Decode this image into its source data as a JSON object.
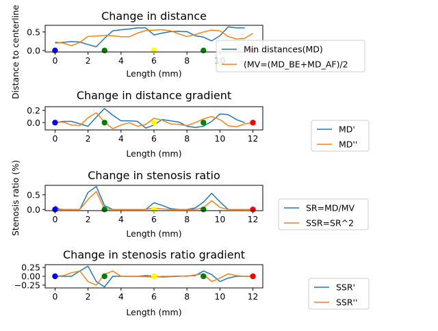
{
  "colors": {
    "blue": "#1f77b4",
    "orange": "#ff7f0e",
    "frame": "#000000",
    "legend_border": "#cccccc"
  },
  "chart_data": [
    {
      "type": "line",
      "title": "Change in distance",
      "xlabel": "Length (mm)",
      "ylabel": "Distance to centerline",
      "xlim": [
        -0.6,
        12.6
      ],
      "ylim": [
        -0.04,
        0.68
      ],
      "xticks": [
        "0",
        "2",
        "4",
        "6",
        "8",
        "10"
      ],
      "yticks": [
        "0.0",
        "0.5"
      ],
      "legend_position": "lower-right",
      "series": [
        {
          "name": "Min distances(MD)",
          "color": "#1f77b4",
          "x": [
            0,
            0.5,
            1,
            1.5,
            2,
            2.5,
            3,
            3.5,
            4,
            4.5,
            5,
            5.5,
            6,
            6.5,
            7,
            7.5,
            8,
            8.5,
            9,
            9.5,
            10,
            10.5,
            11,
            11.5
          ],
          "values": [
            0.2,
            0.22,
            0.24,
            0.23,
            0.16,
            0.1,
            0.33,
            0.53,
            0.56,
            0.58,
            0.61,
            0.61,
            0.42,
            0.47,
            0.51,
            0.52,
            0.51,
            0.4,
            0.36,
            0.26,
            0.4,
            0.64,
            0.61,
            0.61
          ]
        },
        {
          "name": "(MV=(MD_BE+MD_AF)/2",
          "color": "#ff7f0e",
          "x": [
            0,
            0.5,
            1,
            1.5,
            2,
            2.5,
            3,
            3.5,
            4,
            4.5,
            5,
            5.5,
            6,
            6.5,
            7,
            7.5,
            8,
            8.5,
            9,
            9.5,
            10,
            10.5,
            11,
            11.5,
            12
          ],
          "values": [
            0.23,
            0.2,
            0.13,
            0.22,
            0.38,
            0.39,
            0.41,
            0.4,
            0.37,
            0.37,
            0.47,
            0.54,
            0.55,
            0.56,
            0.53,
            0.45,
            0.38,
            0.43,
            0.5,
            0.55,
            0.53,
            0.38,
            0.31,
            0.33,
            0.46
          ]
        }
      ],
      "markers": [
        {
          "x": 0,
          "y": 0,
          "color": "#0000ff"
        },
        {
          "x": 3,
          "y": 0,
          "color": "#008000"
        },
        {
          "x": 6,
          "y": 0,
          "color": "#ffff00"
        },
        {
          "x": 9,
          "y": 0,
          "color": "#008000"
        },
        {
          "x": 12,
          "y": 0,
          "color": "#ff0000"
        }
      ]
    },
    {
      "type": "line",
      "title": "Change in distance gradient",
      "xlabel": "Length (mm)",
      "ylabel": "",
      "xlim": [
        -0.6,
        12.6
      ],
      "ylim": [
        -0.12,
        0.26
      ],
      "xticks": [
        "0",
        "2",
        "4",
        "6",
        "8",
        "10",
        "12"
      ],
      "yticks": [
        "0.0",
        "0.2"
      ],
      "legend_position": "right",
      "series": [
        {
          "name": "MD'",
          "color": "#1f77b4",
          "x": [
            0,
            0.5,
            1,
            1.5,
            2,
            2.5,
            3,
            3.5,
            4,
            4.5,
            5,
            5.5,
            6,
            6.5,
            7,
            7.5,
            8,
            8.5,
            9,
            9.5,
            10,
            10.5,
            11,
            11.5
          ],
          "values": [
            0.0,
            0.02,
            0.02,
            -0.02,
            -0.06,
            0.09,
            0.23,
            0.12,
            0.03,
            0.03,
            0.02,
            -0.09,
            -0.04,
            0.05,
            0.03,
            0.01,
            -0.06,
            -0.08,
            -0.06,
            0.02,
            0.14,
            0.13,
            0.05,
            0.0
          ]
        },
        {
          "name": "MD''",
          "color": "#ff7f0e",
          "x": [
            0,
            0.5,
            1,
            1.5,
            2,
            2.5,
            3,
            3.5,
            4,
            4.5,
            5,
            5.5,
            6,
            6.5,
            7,
            7.5,
            8,
            8.5,
            9,
            9.5,
            10,
            10.5,
            11,
            11.5,
            12
          ],
          "values": [
            0.0,
            0.01,
            -0.04,
            -0.05,
            0.08,
            0.16,
            0.01,
            -0.1,
            -0.04,
            0.0,
            -0.06,
            -0.03,
            0.07,
            0.04,
            -0.02,
            -0.03,
            -0.05,
            0.0,
            0.06,
            0.1,
            0.05,
            -0.05,
            -0.07,
            -0.02,
            0.0
          ]
        }
      ],
      "markers": [
        {
          "x": 0,
          "y": 0,
          "color": "#0000ff"
        },
        {
          "x": 3,
          "y": 0,
          "color": "#008000"
        },
        {
          "x": 6,
          "y": 0,
          "color": "#ffff00"
        },
        {
          "x": 9,
          "y": 0,
          "color": "#008000"
        },
        {
          "x": 12,
          "y": 0,
          "color": "#ff0000"
        }
      ]
    },
    {
      "type": "line",
      "title": "Change in stenosis ratio",
      "xlabel": "Length (mm)",
      "ylabel": "Stenosis ratio (%)",
      "xlim": [
        -0.6,
        12.6
      ],
      "ylim": [
        -0.04,
        0.82
      ],
      "xticks": [
        "0",
        "2",
        "4",
        "6",
        "8",
        "10",
        "12"
      ],
      "yticks": [
        "0.0",
        "0.5"
      ],
      "legend_position": "right",
      "series": [
        {
          "name": "SR=MD/MV",
          "color": "#1f77b4",
          "x": [
            0,
            0.25,
            0.5,
            1,
            1.5,
            2,
            2.5,
            3,
            3.5,
            4,
            4.5,
            5,
            5.5,
            6,
            6.5,
            7,
            7.5,
            8,
            8.5,
            9,
            9.5,
            10,
            10.5,
            11,
            11.5,
            12
          ],
          "values": [
            0.12,
            0.01,
            0.0,
            0.0,
            0.0,
            0.58,
            0.78,
            0.13,
            0.0,
            0.0,
            0.0,
            0.0,
            0.0,
            0.23,
            0.14,
            0.03,
            0.0,
            0.0,
            0.05,
            0.25,
            0.55,
            0.26,
            0.0,
            0.0,
            0.0,
            0.0
          ]
        },
        {
          "name": "SSR=SR^2",
          "color": "#ff7f0e",
          "x": [
            0,
            0.5,
            1,
            1.5,
            2,
            2.5,
            3,
            3.5,
            4,
            4.5,
            5,
            5.5,
            6,
            6.5,
            7,
            7.5,
            8,
            8.5,
            9,
            9.5,
            10,
            10.5,
            11,
            11.5,
            12
          ],
          "values": [
            0.0,
            0.0,
            0.0,
            0.0,
            0.34,
            0.61,
            0.02,
            0.0,
            0.0,
            0.0,
            0.0,
            0.0,
            0.05,
            0.02,
            0.0,
            0.0,
            0.0,
            0.0,
            0.06,
            0.3,
            0.07,
            0.0,
            0.0,
            0.0,
            0.0
          ]
        }
      ],
      "markers": [
        {
          "x": 0,
          "y": 0,
          "color": "#0000ff"
        },
        {
          "x": 3,
          "y": 0,
          "color": "#008000"
        },
        {
          "x": 6,
          "y": 0,
          "color": "#ffff00"
        },
        {
          "x": 9,
          "y": 0,
          "color": "#008000"
        },
        {
          "x": 12,
          "y": 0,
          "color": "#ff0000"
        }
      ]
    },
    {
      "type": "line",
      "title": "Change in stenosis ratio gradient",
      "xlabel": "Length (mm)",
      "ylabel": "",
      "xlim": [
        -0.6,
        12.6
      ],
      "ylim": [
        -0.33,
        0.33
      ],
      "xticks": [
        "0",
        "2",
        "4",
        "6",
        "8",
        "10",
        "12"
      ],
      "yticks": [
        "0.25",
        "0.00",
        "−0.25"
      ],
      "ytick_values": [
        0.25,
        0,
        -0.25
      ],
      "legend_position": "right",
      "series": [
        {
          "name": "SSR'",
          "color": "#1f77b4",
          "x": [
            0,
            0.5,
            1,
            1.5,
            2,
            2.5,
            3,
            3.5,
            4,
            4.5,
            5,
            5.5,
            6,
            6.5,
            7,
            7.5,
            8,
            8.5,
            9,
            9.5,
            10,
            10.5,
            11,
            11.5,
            12
          ],
          "values": [
            0.0,
            0.0,
            0.0,
            0.15,
            0.29,
            -0.15,
            -0.3,
            0.0,
            0.0,
            0.0,
            0.0,
            0.02,
            0.0,
            -0.02,
            -0.01,
            0.0,
            0.01,
            0.02,
            0.15,
            0.05,
            -0.15,
            -0.05,
            0.0,
            0.0,
            0.0
          ]
        },
        {
          "name": "SSR''",
          "color": "#ff7f0e",
          "x": [
            0,
            0.5,
            1,
            1.5,
            2,
            2.5,
            3,
            3.5,
            4,
            4.5,
            5,
            5.5,
            6,
            6.5,
            7,
            7.5,
            8,
            8.5,
            9,
            9.5,
            10,
            10.5,
            11,
            11.5,
            12
          ],
          "values": [
            0.0,
            0.02,
            0.1,
            0.15,
            -0.15,
            -0.25,
            0.06,
            0.15,
            0.0,
            0.0,
            0.0,
            -0.01,
            -0.02,
            0.0,
            0.0,
            0.01,
            0.0,
            0.04,
            0.06,
            -0.15,
            -0.05,
            0.07,
            0.02,
            0.0,
            0.0
          ]
        }
      ],
      "markers": [
        {
          "x": 0,
          "y": 0,
          "color": "#0000ff"
        },
        {
          "x": 3,
          "y": 0,
          "color": "#008000"
        },
        {
          "x": 6,
          "y": 0,
          "color": "#ffff00"
        },
        {
          "x": 9,
          "y": 0,
          "color": "#008000"
        },
        {
          "x": 12,
          "y": 0,
          "color": "#ff0000"
        }
      ]
    }
  ]
}
